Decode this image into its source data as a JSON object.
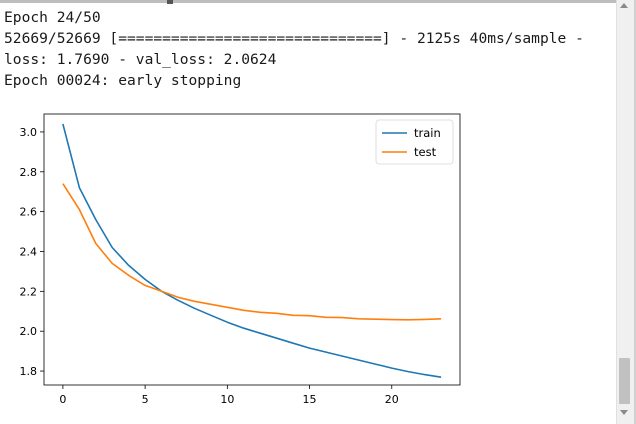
{
  "log": {
    "lines": [
      "Epoch 24/50",
      "52669/52669 [==============================] - 2125s 40ms/sample -",
      "loss: 1.7690 - val_loss: 2.0624",
      "Epoch 00024: early stopping"
    ]
  },
  "chart_data": {
    "type": "line",
    "title": "",
    "xlabel": "",
    "ylabel": "",
    "x": [
      0,
      1,
      2,
      3,
      4,
      5,
      6,
      7,
      8,
      9,
      10,
      11,
      12,
      13,
      14,
      15,
      16,
      17,
      18,
      19,
      20,
      21,
      22,
      23
    ],
    "xlim": [
      -1.15,
      24.15
    ],
    "ylim": [
      1.73,
      3.09
    ],
    "xticks": [
      0,
      5,
      10,
      15,
      20
    ],
    "yticks": [
      1.8,
      2.0,
      2.2,
      2.4,
      2.6,
      2.8,
      3.0
    ],
    "ytick_labels": [
      "1.8",
      "2.0",
      "2.2",
      "2.4",
      "2.6",
      "2.8",
      "3.0"
    ],
    "xtick_labels": [
      "0",
      "5",
      "10",
      "15",
      "20"
    ],
    "grid": false,
    "legend_position": "top-right",
    "series": [
      {
        "name": "train",
        "color": "#1f77b4",
        "values": [
          3.04,
          2.72,
          2.56,
          2.42,
          2.33,
          2.26,
          2.2,
          2.155,
          2.115,
          2.08,
          2.045,
          2.015,
          1.99,
          1.965,
          1.94,
          1.915,
          1.895,
          1.875,
          1.855,
          1.835,
          1.815,
          1.797,
          1.782,
          1.769
        ]
      },
      {
        "name": "test",
        "color": "#ff7f0e",
        "values": [
          2.74,
          2.61,
          2.44,
          2.34,
          2.28,
          2.23,
          2.2,
          2.17,
          2.15,
          2.135,
          2.12,
          2.105,
          2.095,
          2.09,
          2.08,
          2.078,
          2.07,
          2.068,
          2.062,
          2.06,
          2.058,
          2.057,
          2.059,
          2.0624
        ]
      }
    ]
  }
}
